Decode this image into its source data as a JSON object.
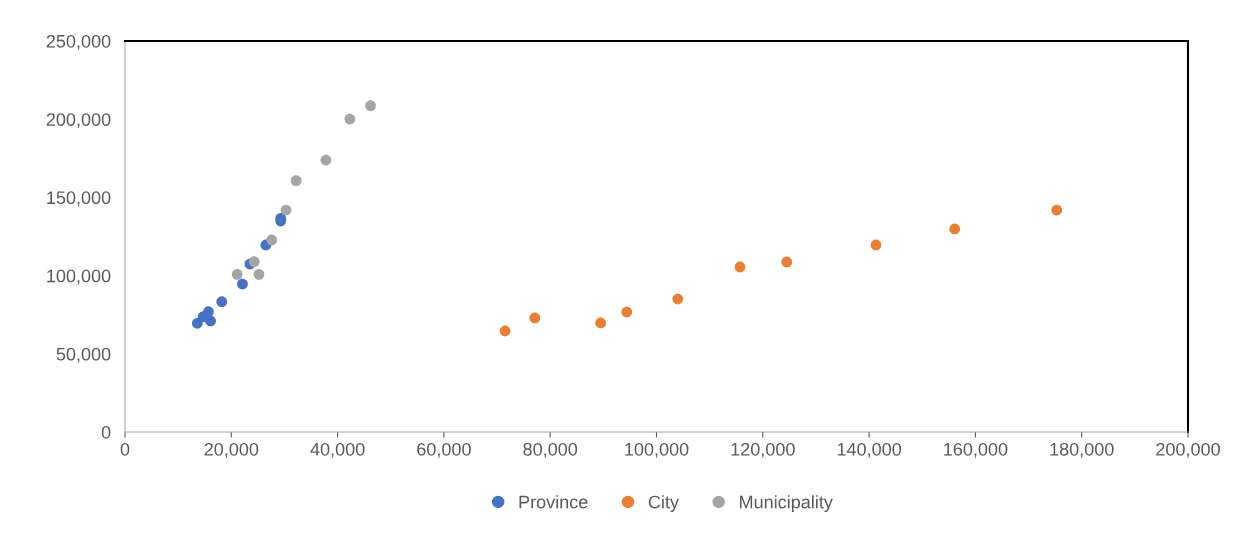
{
  "chart_data": {
    "type": "scatter",
    "marker": "circle",
    "grid": false,
    "legend": "bottom",
    "xlim": [
      0,
      200000
    ],
    "xticks": [
      {
        "value": 0,
        "label": "0"
      },
      {
        "value": 20000,
        "label": "20,000"
      },
      {
        "value": 40000,
        "label": "40,000"
      },
      {
        "value": 60000,
        "label": "60,000"
      },
      {
        "value": 80000,
        "label": "80,000"
      },
      {
        "value": 100000,
        "label": "100,000"
      },
      {
        "value": 120000,
        "label": "120,000"
      },
      {
        "value": 140000,
        "label": "140,000"
      },
      {
        "value": 160000,
        "label": "160,000"
      },
      {
        "value": 180000,
        "label": "180,000"
      },
      {
        "value": 200000,
        "label": "200,000"
      }
    ],
    "ylim": [
      0,
      250000
    ],
    "yticks": [
      {
        "value": 0,
        "label": "0"
      },
      {
        "value": 50000,
        "label": "50,000"
      },
      {
        "value": 100000,
        "label": "100,000"
      },
      {
        "value": 150000,
        "label": "150,000"
      },
      {
        "value": 200000,
        "label": "200,000"
      },
      {
        "value": 250000,
        "label": "250,000"
      }
    ],
    "series": [
      {
        "name": "Province",
        "color": "#4472c4",
        "x": [
          13600,
          14700,
          15700,
          16100,
          18200,
          22100,
          23500,
          26500,
          29300,
          29300
        ],
        "values": [
          69500,
          73700,
          76900,
          71000,
          83300,
          94600,
          107400,
          119600,
          134900,
          136600
        ]
      },
      {
        "name": "City",
        "color": "#ed7d31",
        "x": [
          71500,
          77100,
          89500,
          94400,
          104000,
          115700,
          124500,
          141300,
          156100,
          175300
        ],
        "values": [
          64600,
          72900,
          69700,
          76700,
          85000,
          105500,
          108700,
          119600,
          129800,
          141900
        ]
      },
      {
        "name": "Municipality",
        "color": "#a5a5a5",
        "x": [
          21100,
          24300,
          25200,
          27600,
          30300,
          32200,
          37800,
          42300,
          46200
        ],
        "values": [
          100800,
          108900,
          100800,
          122800,
          141900,
          160700,
          173900,
          200100,
          208600
        ]
      }
    ]
  }
}
